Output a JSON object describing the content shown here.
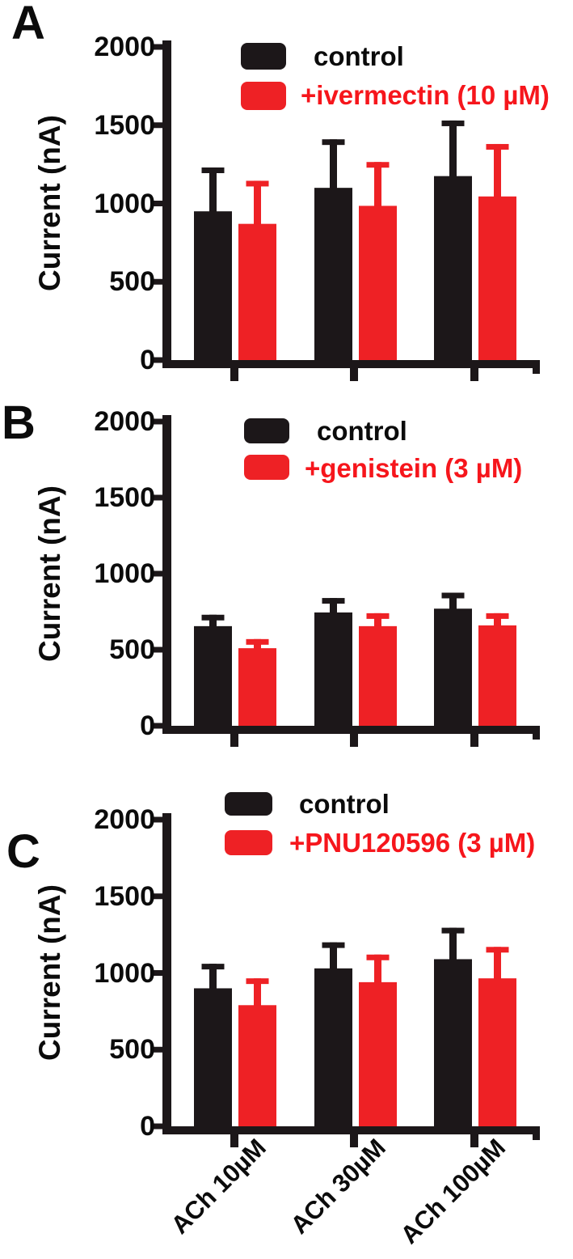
{
  "figure": {
    "background": "#ffffff",
    "colors": {
      "bar_black": "#1c1719",
      "bar_red": "#ee2125",
      "red_text": "#f6161c",
      "text_black": "#0b0b0b"
    },
    "panels": [
      {
        "letter": "A",
        "y_axis_title": "Current (nA)",
        "legend": [
          {
            "label": "control",
            "color": "bar_black"
          },
          {
            "label": "+ivermectin (10 µM)",
            "color": "bar_red"
          }
        ]
      },
      {
        "letter": "B",
        "y_axis_title": "Current (nA)",
        "legend": [
          {
            "label": "control",
            "color": "bar_black"
          },
          {
            "label": "+genistein (3 µM)",
            "color": "bar_red"
          }
        ]
      },
      {
        "letter": "C",
        "y_axis_title": "Current (nA)",
        "legend": [
          {
            "label": "control",
            "color": "bar_black"
          },
          {
            "label": "+PNU120596 (3 µM)",
            "color": "bar_red"
          }
        ],
        "x_labels": [
          "ACh 10µM",
          "ACh 30µM",
          "ACh 100µM"
        ]
      }
    ]
  },
  "chart_data": [
    {
      "type": "bar",
      "panel": "A",
      "categories": [
        "ACh 10µM",
        "ACh 30µM",
        "ACh 100µM"
      ],
      "series": [
        {
          "name": "control",
          "color": "#1c1719",
          "values": [
            950,
            1100,
            1175
          ],
          "errors_plus": [
            280,
            310,
            355
          ]
        },
        {
          "name": "+ivermectin (10 µM)",
          "color": "#ee2125",
          "values": [
            870,
            985,
            1045
          ],
          "errors_plus": [
            275,
            280,
            335
          ]
        }
      ],
      "xlabel": "",
      "ylabel": "Current (nA)",
      "ylim": [
        0,
        2000
      ],
      "yticks": [
        0,
        500,
        1000,
        1500,
        2000
      ],
      "error_bars": "upper only",
      "grid": false,
      "legend_position": "top inside"
    },
    {
      "type": "bar",
      "panel": "B",
      "categories": [
        "ACh 10µM",
        "ACh 30µM",
        "ACh 100µM"
      ],
      "series": [
        {
          "name": "control",
          "color": "#1c1719",
          "values": [
            655,
            745,
            770
          ],
          "errors_plus": [
            75,
            95,
            105
          ]
        },
        {
          "name": "+genistein (3 µM)",
          "color": "#ee2125",
          "values": [
            510,
            655,
            660
          ],
          "errors_plus": [
            60,
            85,
            80
          ]
        }
      ],
      "xlabel": "",
      "ylabel": "Current (nA)",
      "ylim": [
        0,
        2000
      ],
      "yticks": [
        0,
        500,
        1000,
        1500,
        2000
      ],
      "error_bars": "upper only",
      "grid": false,
      "legend_position": "top inside"
    },
    {
      "type": "bar",
      "panel": "C",
      "categories": [
        "ACh 10µM",
        "ACh 30µM",
        "ACh 100µM"
      ],
      "series": [
        {
          "name": "control",
          "color": "#1c1719",
          "values": [
            900,
            1030,
            1090
          ],
          "errors_plus": [
            160,
            170,
            205
          ]
        },
        {
          "name": "+PNU120596 (3 µM)",
          "color": "#ee2125",
          "values": [
            790,
            940,
            965
          ],
          "errors_plus": [
            175,
            180,
            205
          ]
        }
      ],
      "xlabel": "",
      "ylabel": "Current (nA)",
      "ylim": [
        0,
        2000
      ],
      "yticks": [
        0,
        500,
        1000,
        1500,
        2000
      ],
      "error_bars": "upper only",
      "grid": false,
      "legend_position": "top inside"
    }
  ]
}
